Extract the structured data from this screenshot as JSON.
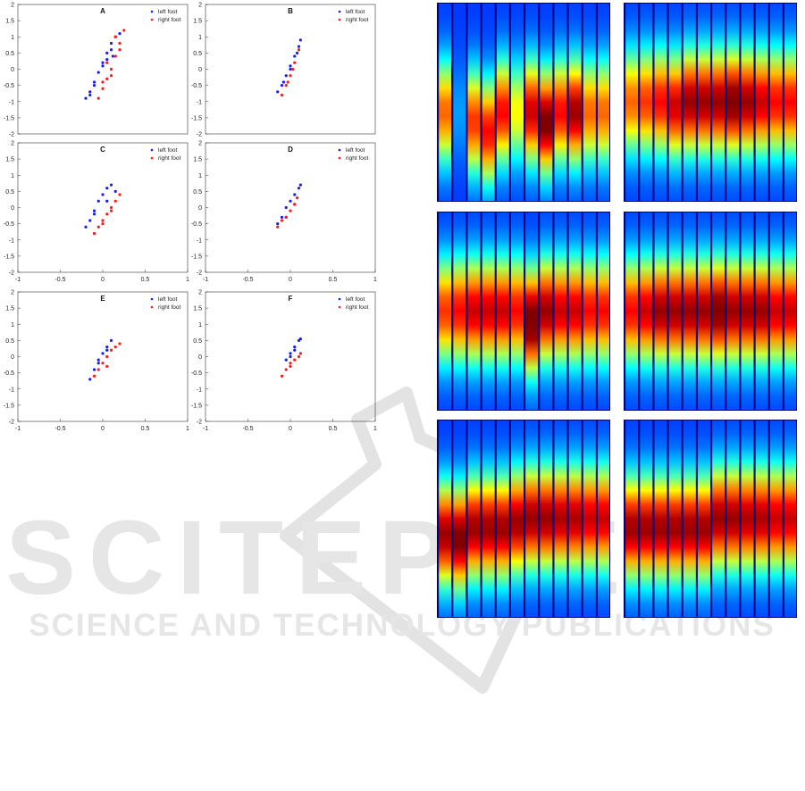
{
  "colors": {
    "left_foot": "#1a1aff",
    "right_foot": "#ff1a1a",
    "watermark": "#e6e6e6"
  },
  "watermark": {
    "line1": "SCITEPRESS",
    "line2": "SCIENCE AND TECHNOLOGY PUBLICATIONS"
  },
  "chart_data": [
    {
      "type": "scatter",
      "title": "A",
      "xlim": [
        -1,
        1
      ],
      "ylim": [
        -2,
        2
      ],
      "xticks": [
        "-1",
        "-0.5",
        "0",
        "0.5",
        "1"
      ],
      "yticks": [
        "2",
        "1.5",
        "1",
        "0.5",
        "0",
        "-0.5",
        "-1",
        "-1.5",
        "-2"
      ],
      "legend_position": "top-right",
      "series": [
        {
          "name": "left foot",
          "color": "#1a1aff",
          "x": [
            -0.2,
            -0.15,
            -0.1,
            -0.05,
            0.0,
            0.05,
            0.1,
            0.15,
            0.2,
            0.1,
            0.0,
            -0.1,
            -0.15,
            0.05,
            0.12
          ],
          "y": [
            -0.9,
            -0.7,
            -0.4,
            -0.1,
            0.2,
            0.5,
            0.8,
            1.0,
            1.1,
            0.6,
            0.1,
            -0.5,
            -0.8,
            0.3,
            0.4
          ]
        },
        {
          "name": "right foot",
          "color": "#ff1a1a",
          "x": [
            -0.05,
            0.0,
            0.05,
            0.1,
            0.15,
            0.2,
            0.25,
            0.15,
            0.05,
            0.0,
            0.2,
            0.1
          ],
          "y": [
            -0.9,
            -0.6,
            -0.3,
            0.0,
            0.4,
            0.8,
            1.2,
            1.0,
            0.2,
            -0.4,
            0.6,
            -0.2
          ]
        }
      ]
    },
    {
      "type": "scatter",
      "title": "B",
      "xlim": [
        -1,
        1
      ],
      "ylim": [
        -2,
        2
      ],
      "xticks": [
        "-1",
        "-0.5",
        "0",
        "0.5",
        "1"
      ],
      "yticks": [
        "2",
        "1.5",
        "1",
        "0.5",
        "0",
        "-0.5",
        "-1",
        "-1.5",
        "-2"
      ],
      "legend_position": "top-right",
      "series": [
        {
          "name": "left foot",
          "color": "#1a1aff",
          "x": [
            -0.15,
            -0.1,
            -0.05,
            0.0,
            0.05,
            0.1,
            0.12,
            0.08,
            0.0,
            -0.08
          ],
          "y": [
            -0.7,
            -0.5,
            -0.2,
            0.1,
            0.4,
            0.7,
            0.9,
            0.5,
            0.0,
            -0.4
          ]
        },
        {
          "name": "right foot",
          "color": "#ff1a1a",
          "x": [
            -0.1,
            -0.05,
            0.0,
            0.05,
            0.1,
            0.03,
            -0.03
          ],
          "y": [
            -0.8,
            -0.5,
            -0.2,
            0.2,
            0.6,
            0.0,
            -0.4
          ]
        }
      ]
    },
    {
      "type": "scatter",
      "title": "C",
      "xlim": [
        -1,
        1
      ],
      "ylim": [
        -2,
        2
      ],
      "xticks": [
        "-1",
        "-0.5",
        "0",
        "0.5",
        "1"
      ],
      "yticks": [
        "2",
        "1.5",
        "1",
        "0.5",
        "0",
        "-0.5",
        "-1",
        "-1.5",
        "-2"
      ],
      "legend_position": "top-right",
      "series": [
        {
          "name": "left foot",
          "color": "#1a1aff",
          "x": [
            -0.2,
            -0.15,
            -0.1,
            -0.05,
            0.0,
            0.05,
            0.1,
            0.15,
            0.05,
            -0.1
          ],
          "y": [
            -0.6,
            -0.4,
            -0.1,
            0.2,
            0.4,
            0.6,
            0.7,
            0.5,
            0.2,
            -0.2
          ]
        },
        {
          "name": "right foot",
          "color": "#ff1a1a",
          "x": [
            -0.1,
            -0.05,
            0.0,
            0.05,
            0.1,
            0.15,
            0.2,
            0.1,
            0.0
          ],
          "y": [
            -0.8,
            -0.6,
            -0.4,
            -0.2,
            0.0,
            0.2,
            0.4,
            -0.1,
            -0.5
          ]
        }
      ]
    },
    {
      "type": "scatter",
      "title": "D",
      "xlim": [
        -1,
        1
      ],
      "ylim": [
        -2,
        2
      ],
      "xticks": [
        "-1",
        "-0.5",
        "0",
        "0.5",
        "1"
      ],
      "yticks": [
        "2",
        "1.5",
        "1",
        "0.5",
        "0",
        "-0.5",
        "-1",
        "-1.5",
        "-2"
      ],
      "legend_position": "top-right",
      "series": [
        {
          "name": "left foot",
          "color": "#1a1aff",
          "x": [
            -0.15,
            -0.1,
            -0.05,
            0.0,
            0.05,
            0.1,
            0.12,
            0.05,
            -0.05
          ],
          "y": [
            -0.5,
            -0.3,
            0.0,
            0.2,
            0.4,
            0.6,
            0.7,
            0.1,
            -0.3
          ]
        },
        {
          "name": "right foot",
          "color": "#ff1a1a",
          "x": [
            -0.15,
            -0.1,
            -0.05,
            0.0,
            0.05,
            0.08
          ],
          "y": [
            -0.6,
            -0.4,
            -0.3,
            -0.1,
            0.1,
            0.3
          ]
        }
      ]
    },
    {
      "type": "scatter",
      "title": "E",
      "xlim": [
        -1,
        1
      ],
      "ylim": [
        -2,
        2
      ],
      "xticks": [
        "-1",
        "-0.5",
        "0",
        "0.5",
        "1"
      ],
      "yticks": [
        "2",
        "1.5",
        "1",
        "0.5",
        "0",
        "-0.5",
        "-1",
        "-1.5",
        "-2"
      ],
      "legend_position": "top-right",
      "series": [
        {
          "name": "left foot",
          "color": "#1a1aff",
          "x": [
            -0.15,
            -0.1,
            -0.05,
            0.0,
            0.05,
            0.1,
            0.05,
            -0.05
          ],
          "y": [
            -0.7,
            -0.4,
            -0.2,
            0.1,
            0.3,
            0.5,
            0.2,
            -0.1
          ]
        },
        {
          "name": "right foot",
          "color": "#ff1a1a",
          "x": [
            -0.1,
            -0.05,
            0.0,
            0.05,
            0.1,
            0.15,
            0.2,
            0.05
          ],
          "y": [
            -0.6,
            -0.4,
            -0.2,
            0.0,
            0.2,
            0.3,
            0.4,
            -0.3
          ]
        }
      ]
    },
    {
      "type": "scatter",
      "title": "F",
      "xlim": [
        -1,
        1
      ],
      "ylim": [
        -2,
        2
      ],
      "xticks": [
        "-1",
        "-0.5",
        "0",
        "0.5",
        "1"
      ],
      "yticks": [
        "2",
        "1.5",
        "1",
        "0.5",
        "0",
        "-0.5",
        "-1",
        "-1.5",
        "-2"
      ],
      "legend_position": "top-right",
      "series": [
        {
          "name": "left foot",
          "color": "#1a1aff",
          "x": [
            -0.05,
            0.0,
            0.05,
            0.1,
            0.12,
            0.05,
            0.0
          ],
          "y": [
            -0.1,
            0.1,
            0.3,
            0.5,
            0.55,
            0.2,
            0.0
          ]
        },
        {
          "name": "right foot",
          "color": "#ff1a1a",
          "x": [
            -0.1,
            -0.05,
            0.0,
            0.05,
            0.1,
            0.12,
            0.0
          ],
          "y": [
            -0.6,
            -0.4,
            -0.2,
            -0.1,
            0.0,
            0.1,
            -0.3
          ]
        }
      ]
    },
    {
      "type": "heatmap",
      "colormap": "jet",
      "panels": [
        {
          "columns": 12,
          "peak_pos": [
            0.55,
            0.55,
            0.6,
            0.65,
            0.55,
            0.55,
            0.55,
            0.6,
            0.55,
            0.55,
            0.55,
            0.55
          ],
          "peak_val": [
            0.6,
            0.1,
            0.65,
            0.7,
            0.7,
            0.45,
            0.75,
            0.85,
            0.7,
            0.8,
            0.6,
            0.6
          ]
        },
        {
          "columns": 12,
          "peak_pos": [
            0.5,
            0.5,
            0.5,
            0.52,
            0.5,
            0.5,
            0.5,
            0.5,
            0.5,
            0.5,
            0.5,
            0.5
          ],
          "peak_val": [
            0.6,
            0.65,
            0.7,
            0.75,
            0.8,
            0.8,
            0.8,
            0.85,
            0.8,
            0.75,
            0.7,
            0.7
          ]
        },
        {
          "columns": 12,
          "peak_pos": [
            0.5,
            0.5,
            0.5,
            0.5,
            0.5,
            0.5,
            0.55,
            0.5,
            0.5,
            0.5,
            0.5,
            0.5
          ],
          "peak_val": [
            0.65,
            0.7,
            0.75,
            0.75,
            0.75,
            0.7,
            0.9,
            0.8,
            0.75,
            0.75,
            0.7,
            0.7
          ]
        },
        {
          "columns": 12,
          "peak_pos": [
            0.5,
            0.5,
            0.5,
            0.5,
            0.5,
            0.5,
            0.5,
            0.5,
            0.5,
            0.5,
            0.5,
            0.5
          ],
          "peak_val": [
            0.7,
            0.75,
            0.8,
            0.8,
            0.8,
            0.8,
            0.85,
            0.8,
            0.8,
            0.8,
            0.75,
            0.75
          ]
        },
        {
          "columns": 12,
          "peak_pos": [
            0.58,
            0.6,
            0.55,
            0.55,
            0.55,
            0.52,
            0.5,
            0.5,
            0.5,
            0.5,
            0.5,
            0.5
          ],
          "peak_val": [
            0.8,
            0.85,
            0.8,
            0.8,
            0.8,
            0.8,
            0.8,
            0.8,
            0.78,
            0.78,
            0.75,
            0.75
          ]
        },
        {
          "columns": 12,
          "peak_pos": [
            0.55,
            0.55,
            0.55,
            0.55,
            0.55,
            0.55,
            0.5,
            0.5,
            0.5,
            0.5,
            0.5,
            0.5
          ],
          "peak_val": [
            0.8,
            0.8,
            0.8,
            0.8,
            0.8,
            0.8,
            0.8,
            0.8,
            0.78,
            0.78,
            0.75,
            0.75
          ]
        }
      ]
    }
  ]
}
